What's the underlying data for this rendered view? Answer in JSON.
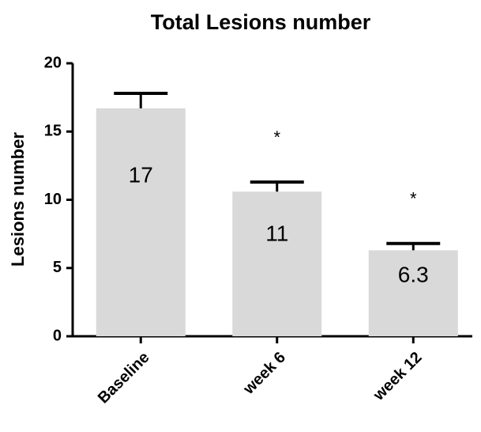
{
  "chart_data": {
    "type": "bar",
    "title": "Total Lesions number",
    "y_label": "Lesions number",
    "categories": [
      "Baseline",
      "week 6",
      "week 12"
    ],
    "values": [
      16.7,
      10.6,
      6.3
    ],
    "value_labels": [
      "17",
      "11",
      "6.3"
    ],
    "errors": [
      1.1,
      0.7,
      0.5
    ],
    "annotations": [
      null,
      "*",
      "*"
    ],
    "color": "#d9d9d9",
    "ylim": [
      0,
      20
    ],
    "yticks": [
      0,
      5,
      10,
      15,
      20
    ]
  }
}
